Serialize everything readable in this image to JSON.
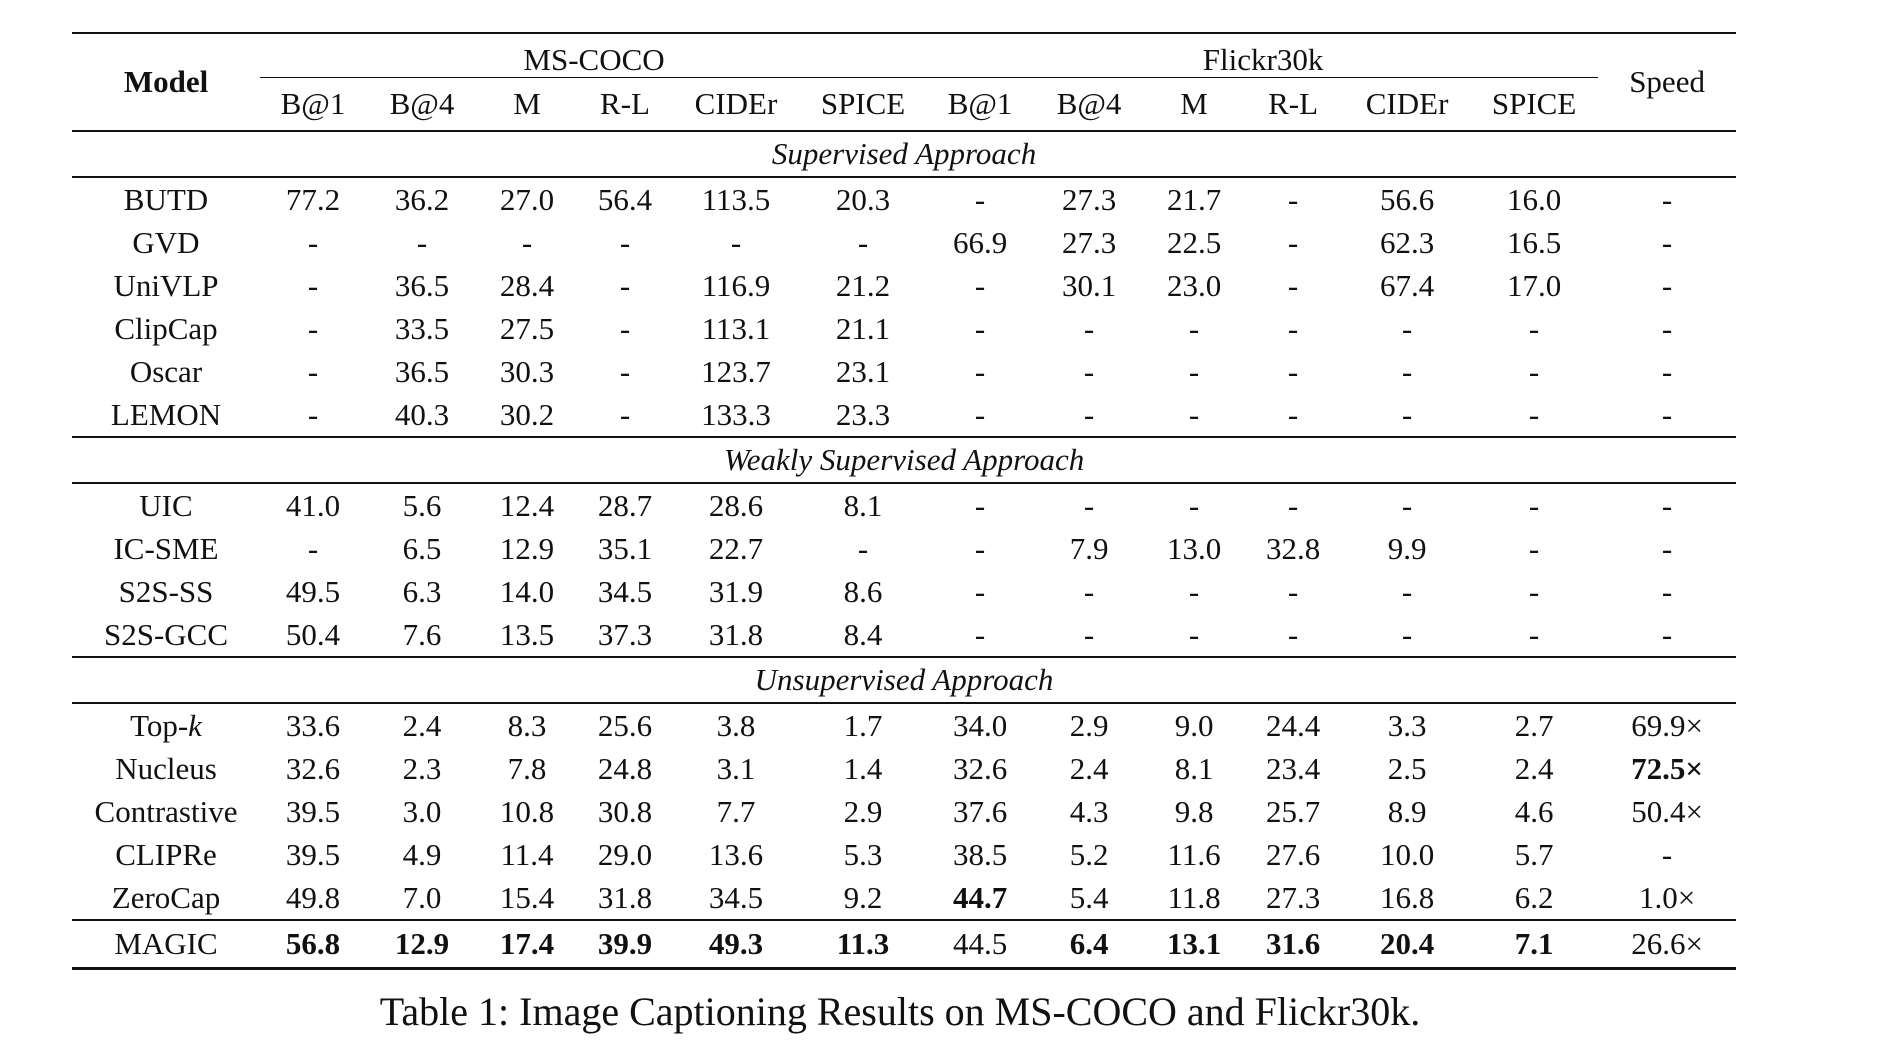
{
  "header": {
    "model": "Model",
    "groups": [
      "MS-COCO",
      "Flickr30k"
    ],
    "speed": "Speed",
    "metrics": [
      "B@1",
      "B@4",
      "M",
      "R-L",
      "CIDEr",
      "SPICE"
    ]
  },
  "sections": [
    {
      "title": "Supervised Approach",
      "rows": [
        {
          "model": "BUTD",
          "values": [
            "77.2",
            "36.2",
            "27.0",
            "56.4",
            "113.5",
            "20.3",
            "-",
            "27.3",
            "21.7",
            "-",
            "56.6",
            "16.0"
          ],
          "speed": "-"
        },
        {
          "model": "GVD",
          "values": [
            "-",
            "-",
            "-",
            "-",
            "-",
            "-",
            "66.9",
            "27.3",
            "22.5",
            "-",
            "62.3",
            "16.5"
          ],
          "speed": "-"
        },
        {
          "model": "UniVLP",
          "values": [
            "-",
            "36.5",
            "28.4",
            "-",
            "116.9",
            "21.2",
            "-",
            "30.1",
            "23.0",
            "-",
            "67.4",
            "17.0"
          ],
          "speed": "-"
        },
        {
          "model": "ClipCap",
          "values": [
            "-",
            "33.5",
            "27.5",
            "-",
            "113.1",
            "21.1",
            "-",
            "-",
            "-",
            "-",
            "-",
            "-"
          ],
          "speed": "-"
        },
        {
          "model": "Oscar",
          "values": [
            "-",
            "36.5",
            "30.3",
            "-",
            "123.7",
            "23.1",
            "-",
            "-",
            "-",
            "-",
            "-",
            "-"
          ],
          "speed": "-"
        },
        {
          "model": "LEMON",
          "values": [
            "-",
            "40.3",
            "30.2",
            "-",
            "133.3",
            "23.3",
            "-",
            "-",
            "-",
            "-",
            "-",
            "-"
          ],
          "speed": "-"
        }
      ]
    },
    {
      "title": "Weakly Supervised Approach",
      "rows": [
        {
          "model": "UIC",
          "values": [
            "41.0",
            "5.6",
            "12.4",
            "28.7",
            "28.6",
            "8.1",
            "-",
            "-",
            "-",
            "-",
            "-",
            "-"
          ],
          "speed": "-"
        },
        {
          "model": "IC-SME",
          "values": [
            "-",
            "6.5",
            "12.9",
            "35.1",
            "22.7",
            "-",
            "-",
            "7.9",
            "13.0",
            "32.8",
            "9.9",
            "-"
          ],
          "speed": "-"
        },
        {
          "model": "S2S-SS",
          "values": [
            "49.5",
            "6.3",
            "14.0",
            "34.5",
            "31.9",
            "8.6",
            "-",
            "-",
            "-",
            "-",
            "-",
            "-"
          ],
          "speed": "-"
        },
        {
          "model": "S2S-GCC",
          "values": [
            "50.4",
            "7.6",
            "13.5",
            "37.3",
            "31.8",
            "8.4",
            "-",
            "-",
            "-",
            "-",
            "-",
            "-"
          ],
          "speed": "-"
        }
      ]
    },
    {
      "title": "Unsupervised Approach",
      "rows": [
        {
          "model": "Top-k",
          "values": [
            "33.6",
            "2.4",
            "8.3",
            "25.6",
            "3.8",
            "1.7",
            "34.0",
            "2.9",
            "9.0",
            "24.4",
            "3.3",
            "2.7"
          ],
          "speed": "69.9×"
        },
        {
          "model": "Nucleus",
          "values": [
            "32.6",
            "2.3",
            "7.8",
            "24.8",
            "3.1",
            "1.4",
            "32.6",
            "2.4",
            "8.1",
            "23.4",
            "2.5",
            "2.4"
          ],
          "speed": "72.5×"
        },
        {
          "model": "Contrastive",
          "values": [
            "39.5",
            "3.0",
            "10.8",
            "30.8",
            "7.7",
            "2.9",
            "37.6",
            "4.3",
            "9.8",
            "25.7",
            "8.9",
            "4.6"
          ],
          "speed": "50.4×"
        },
        {
          "model": "CLIPRe",
          "values": [
            "39.5",
            "4.9",
            "11.4",
            "29.0",
            "13.6",
            "5.3",
            "38.5",
            "5.2",
            "11.6",
            "27.6",
            "10.0",
            "5.7"
          ],
          "speed": "-"
        },
        {
          "model": "ZeroCap",
          "values": [
            "49.8",
            "7.0",
            "15.4",
            "31.8",
            "34.5",
            "9.2",
            "44.7",
            "5.4",
            "11.8",
            "27.3",
            "16.8",
            "6.2"
          ],
          "speed": "1.0×"
        }
      ]
    }
  ],
  "final_row": {
    "model": "MAGIC",
    "values": [
      "56.8",
      "12.9",
      "17.4",
      "39.9",
      "49.3",
      "11.3",
      "44.5",
      "6.4",
      "13.1",
      "31.6",
      "20.4",
      "7.1"
    ],
    "speed": "26.6×"
  },
  "caption": "Table 1: Image Captioning Results on MS-COCO and Flickr30k.",
  "highlight_color": "#9cc3df"
}
